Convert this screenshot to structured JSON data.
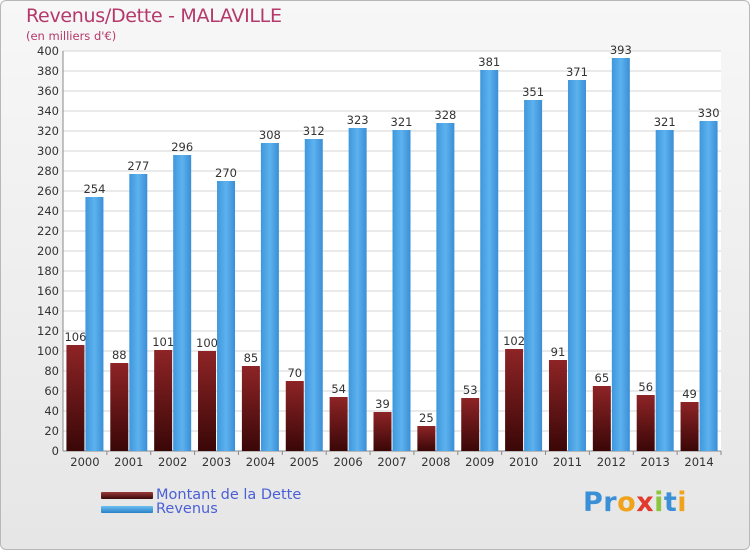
{
  "chart_data": {
    "type": "bar",
    "title": "Revenus/Dette - MALAVILLE",
    "subtitle": "(en milliers d'€)",
    "categories": [
      "2000",
      "2001",
      "2002",
      "2003",
      "2004",
      "2005",
      "2006",
      "2007",
      "2008",
      "2009",
      "2010",
      "2011",
      "2012",
      "2013",
      "2014"
    ],
    "series": [
      {
        "name": "Montant de la Dette",
        "color": "#7a1a1c",
        "values": [
          106,
          88,
          101,
          100,
          85,
          70,
          54,
          39,
          25,
          53,
          102,
          91,
          65,
          56,
          49
        ]
      },
      {
        "name": "Revenus",
        "color": "#4ea6e6",
        "values": [
          254,
          277,
          296,
          270,
          308,
          312,
          323,
          321,
          328,
          381,
          351,
          371,
          393,
          321,
          330
        ]
      }
    ],
    "ylim": [
      0,
      400
    ],
    "yticks": [
      0,
      20,
      40,
      60,
      80,
      100,
      120,
      140,
      160,
      180,
      200,
      220,
      240,
      260,
      280,
      300,
      320,
      340,
      360,
      380,
      400
    ],
    "grid": true,
    "legend_position": "bottom-left"
  },
  "logo": {
    "letters": [
      {
        "ch": "P",
        "color": "#3a8fd6"
      },
      {
        "ch": "r",
        "color": "#3a8fd6"
      },
      {
        "ch": "o",
        "color": "#f0a21a"
      },
      {
        "ch": "x",
        "color": "#e23b2e"
      },
      {
        "ch": "i",
        "color": "#8cc63e"
      },
      {
        "ch": "t",
        "color": "#3a8fd6"
      },
      {
        "ch": "i",
        "color": "#f0a21a"
      }
    ]
  }
}
